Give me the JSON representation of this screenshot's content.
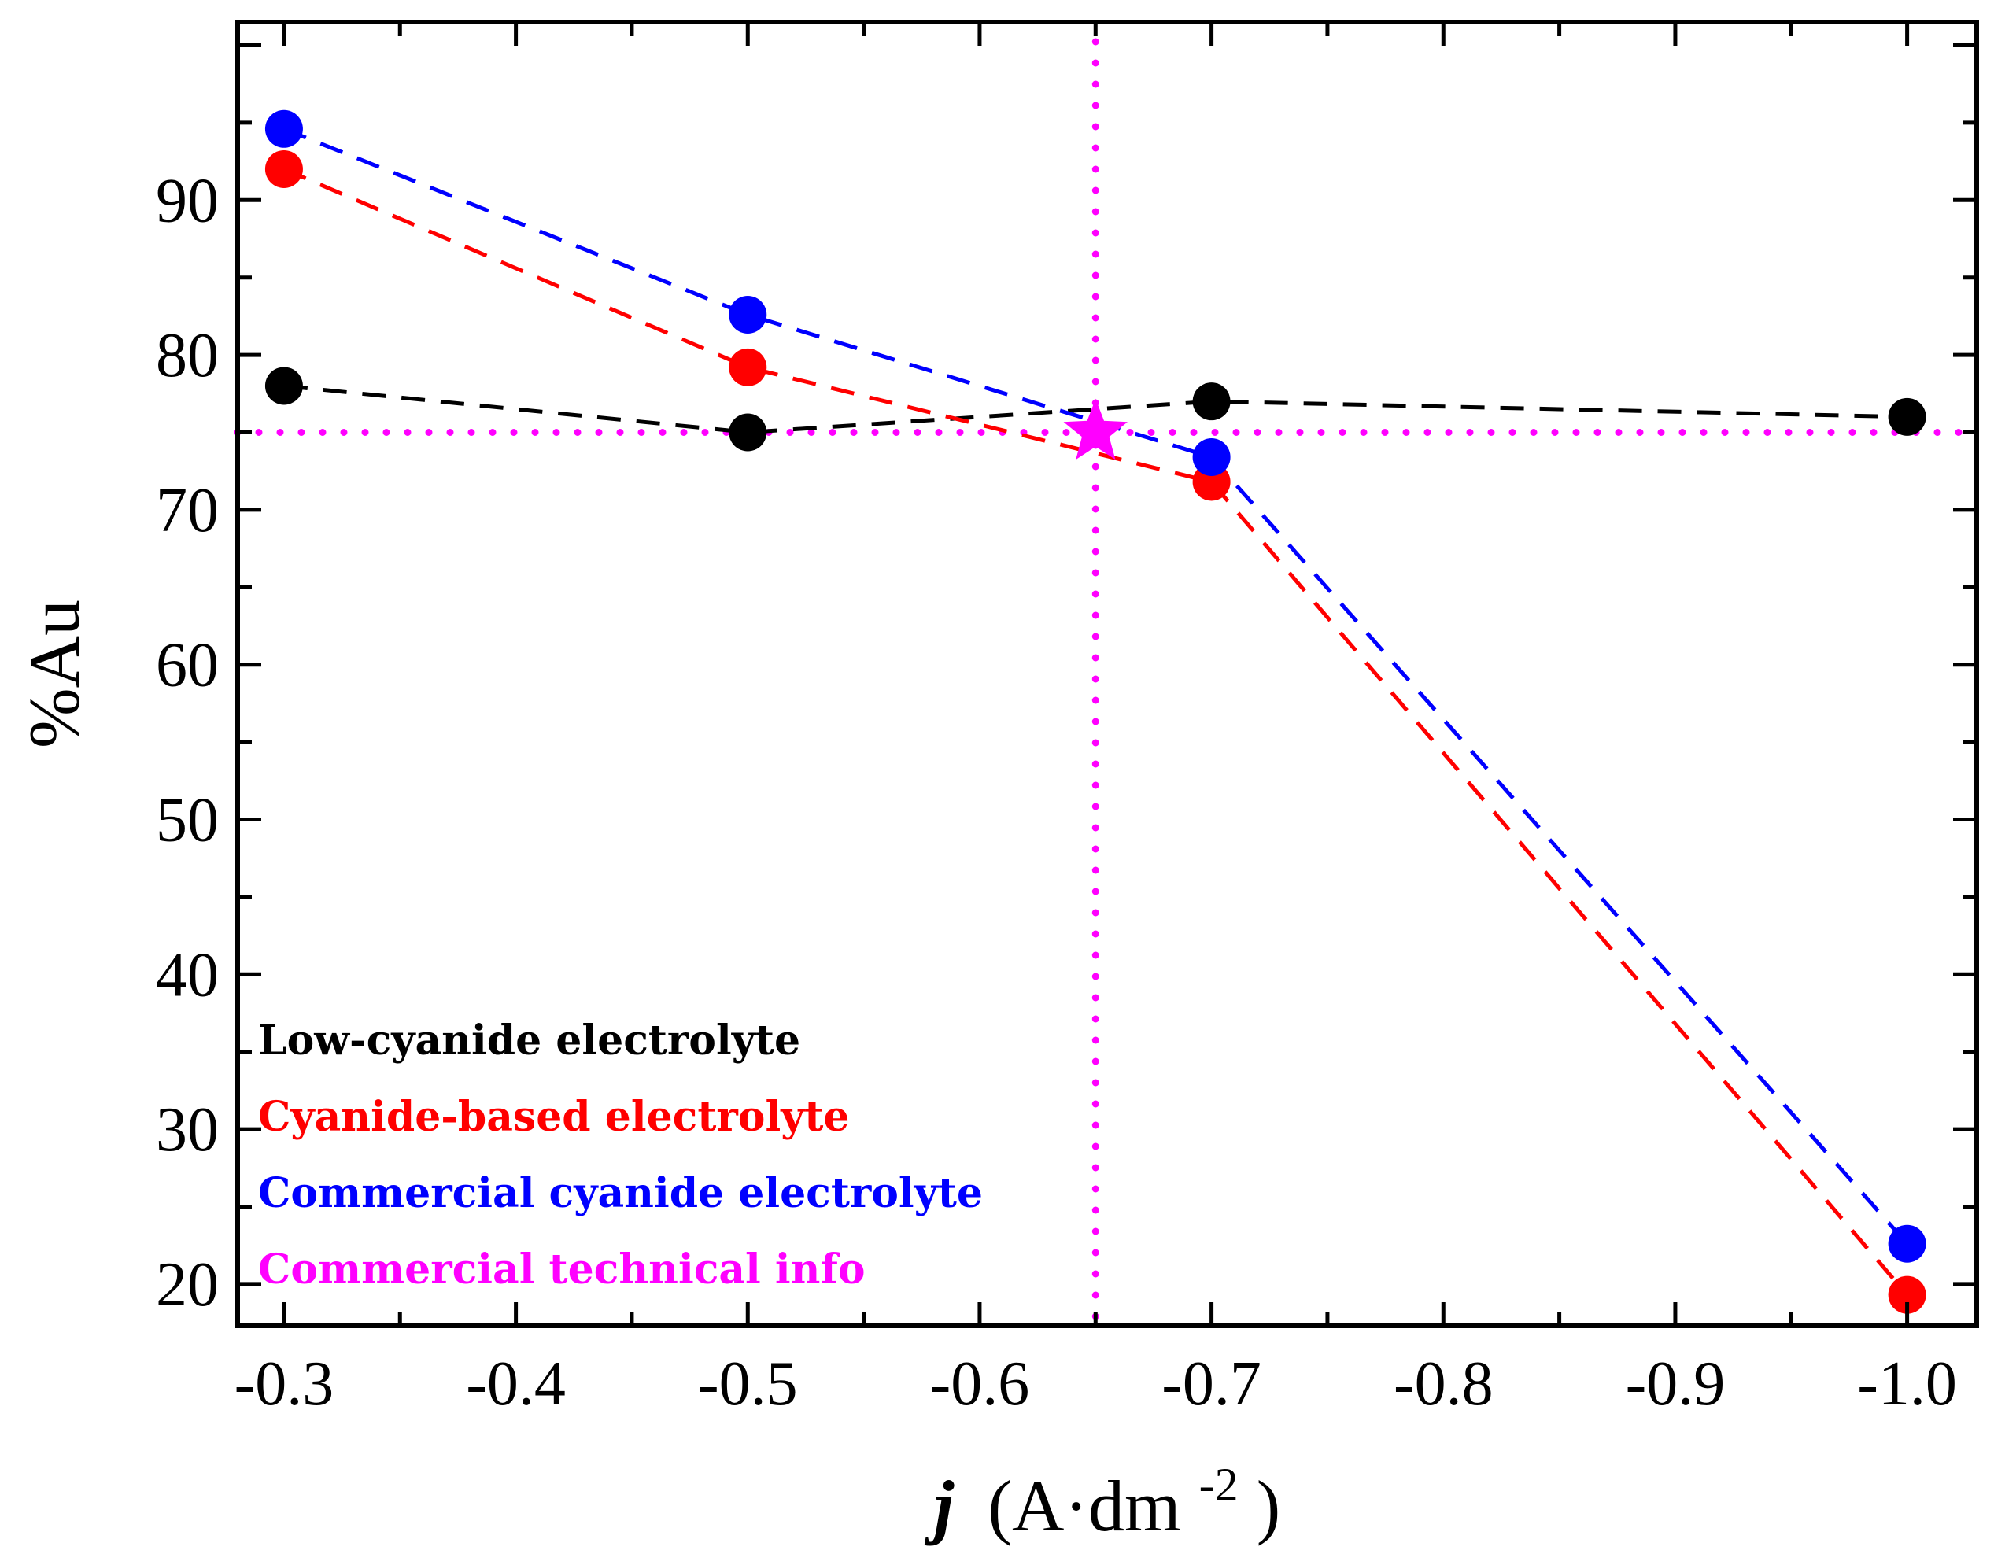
{
  "chart_data": {
    "type": "line",
    "title": "",
    "xlabel_italic": "j",
    "xlabel_unit": "(A·dm",
    "xlabel_sup": "-2",
    "xlabel_close": ")",
    "ylabel": "%Au",
    "xlim": [
      -0.28,
      -1.03
    ],
    "ylim": [
      17.3,
      101.5
    ],
    "x_ticks": [
      -0.3,
      -0.4,
      -0.5,
      -0.6,
      -0.7,
      -0.8,
      -0.9,
      -1.0
    ],
    "x_tick_labels": [
      "-0.3",
      "-0.4",
      "-0.5",
      "-0.6",
      "-0.7",
      "-0.8",
      "-0.9",
      "-1.0"
    ],
    "y_ticks": [
      20,
      30,
      40,
      50,
      60,
      70,
      80,
      90
    ],
    "y_tick_labels": [
      "20",
      "30",
      "40",
      "50",
      "60",
      "70",
      "80",
      "90"
    ],
    "grid": false,
    "legend_position": "bottom-left",
    "series": [
      {
        "name": "Low-cyanide electrolyte",
        "color": "#000000",
        "x": [
          -0.3,
          -0.5,
          -0.7,
          -1.0
        ],
        "values": [
          78,
          75,
          77,
          76
        ]
      },
      {
        "name": "Cyanide-based electrolyte",
        "color": "#ff0000",
        "x": [
          -0.3,
          -0.5,
          -0.7,
          -1.0
        ],
        "values": [
          92,
          79.2,
          71.8,
          19.3
        ]
      },
      {
        "name": "Commercial cyanide electrolyte",
        "color": "#0000ff",
        "x": [
          -0.3,
          -0.5,
          -0.7,
          -1.0
        ],
        "values": [
          94.6,
          82.6,
          73.4,
          22.6
        ]
      },
      {
        "name": "Commercial technical info",
        "color": "#ff00ff",
        "marker": "star",
        "x": [
          -0.65
        ],
        "values": [
          75
        ],
        "ref_x": -0.65,
        "ref_y": 75
      }
    ]
  }
}
